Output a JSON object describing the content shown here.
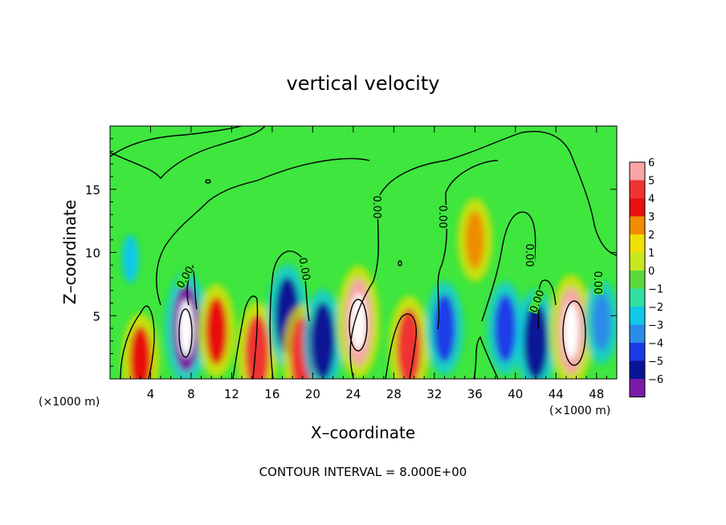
{
  "chart_data": {
    "type": "heatmap",
    "title": "vertical velocity",
    "xlabel": "X–coordinate",
    "ylabel": "Z–coordinate",
    "x_unit_left": "(×1000 m)",
    "x_unit_right": "(×1000 m)",
    "footer": "CONTOUR INTERVAL = 8.000E+00",
    "xlim": [
      0,
      50
    ],
    "ylim": [
      0,
      20
    ],
    "x_ticks": [
      4,
      8,
      12,
      16,
      20,
      24,
      28,
      32,
      36,
      40,
      44,
      48
    ],
    "x_tick_labels": [
      "4",
      "8",
      "12",
      "16",
      "20",
      "24",
      "28",
      "32",
      "36",
      "40",
      "44",
      "48"
    ],
    "y_ticks": [
      5,
      10,
      15
    ],
    "y_tick_labels": [
      "5",
      "10",
      "15"
    ],
    "colorbar": {
      "levels": [
        6,
        5,
        4,
        3,
        2,
        1,
        0,
        -1,
        -2,
        -3,
        -4,
        -5,
        -6
      ],
      "labels": [
        "6",
        "5",
        "4",
        "3",
        "2",
        "1",
        "0",
        "−1",
        "−2",
        "−3",
        "−4",
        "−5",
        "−6"
      ],
      "colors": [
        "#f7a5a5",
        "#f03232",
        "#e81010",
        "#f08c00",
        "#f0e000",
        "#c8e81e",
        "#5ad93c",
        "#30e0a0",
        "#10c8e8",
        "#2a8ce8",
        "#1a3ce8",
        "#0a1496",
        "#7a1aa8"
      ]
    },
    "contour_labels": [
      "0.00",
      "0.00",
      "0.00",
      "0.00",
      "0.00",
      "0.00",
      "0.00"
    ],
    "background_color": "#3ee63e",
    "features": [
      {
        "x": 3.0,
        "z": 1.5,
        "value": 4
      },
      {
        "x": 7.5,
        "z": 4.0,
        "value": -6
      },
      {
        "x": 10.5,
        "z": 3.8,
        "value": 4
      },
      {
        "x": 14.5,
        "z": 2.0,
        "value": 5
      },
      {
        "x": 17.5,
        "z": 5.0,
        "value": -5
      },
      {
        "x": 19.0,
        "z": 1.8,
        "value": 5
      },
      {
        "x": 21.0,
        "z": 3.0,
        "value": -5
      },
      {
        "x": 24.5,
        "z": 4.5,
        "value": 6
      },
      {
        "x": 29.5,
        "z": 2.5,
        "value": 5
      },
      {
        "x": 33.0,
        "z": 4.0,
        "value": -4
      },
      {
        "x": 36.0,
        "z": 11.0,
        "value": 3
      },
      {
        "x": 39.0,
        "z": 4.0,
        "value": -4
      },
      {
        "x": 42.0,
        "z": 3.0,
        "value": -5
      },
      {
        "x": 45.5,
        "z": 3.8,
        "value": 6
      },
      {
        "x": 2.0,
        "z": 9.5,
        "value": -2
      },
      {
        "x": 48.5,
        "z": 4.5,
        "value": -3
      }
    ]
  }
}
